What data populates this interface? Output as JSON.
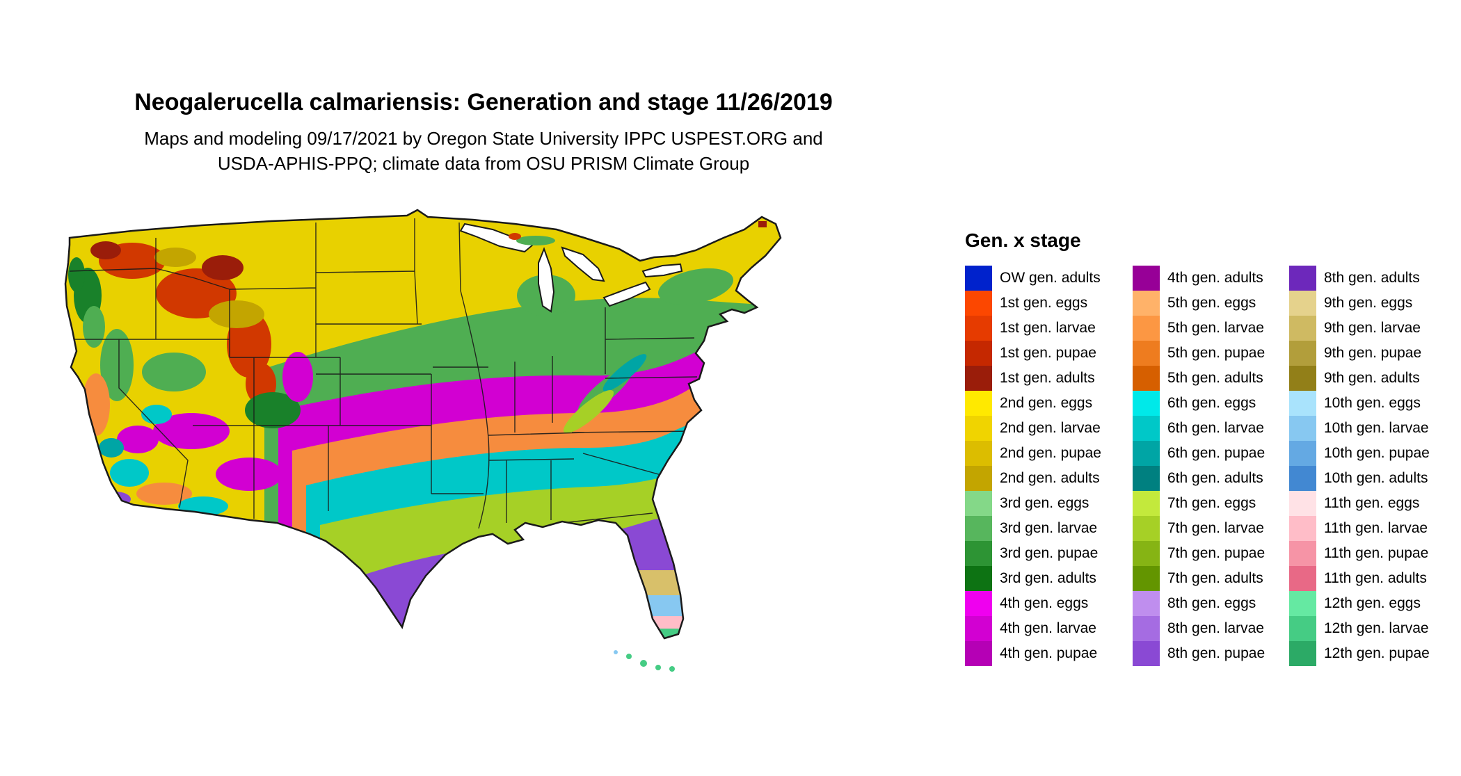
{
  "header": {
    "title": "Neogalerucella calmariensis: Generation and stage 11/26/2019",
    "subtitle_line1": "Maps and modeling 09/17/2021 by Oregon State University IPPC USPEST.ORG and",
    "subtitle_line2": "USDA-APHIS-PPQ; climate data from OSU PRISM Climate Group"
  },
  "legend": {
    "title": "Gen. x stage",
    "columns": [
      [
        {
          "label": "OW gen. adults",
          "color": "#0022cc"
        },
        {
          "label": "1st gen. eggs",
          "color": "#fc4700"
        },
        {
          "label": "1st gen. larvae",
          "color": "#e63b00"
        },
        {
          "label": "1st gen. pupae",
          "color": "#c52800"
        },
        {
          "label": "1st gen. adults",
          "color": "#9a1d0a"
        },
        {
          "label": "2nd gen. eggs",
          "color": "#ffe900"
        },
        {
          "label": "2nd gen. larvae",
          "color": "#f0d400"
        },
        {
          "label": "2nd gen. pupae",
          "color": "#dcbd00"
        },
        {
          "label": "2nd gen. adults",
          "color": "#c3a500"
        },
        {
          "label": "3rd gen. eggs",
          "color": "#84d888"
        },
        {
          "label": "3rd gen. larvae",
          "color": "#57b65d"
        },
        {
          "label": "3rd gen. pupae",
          "color": "#2d9434"
        },
        {
          "label": "3rd gen. adults",
          "color": "#0d7313"
        },
        {
          "label": "4th gen. eggs",
          "color": "#ef00ef"
        },
        {
          "label": "4th gen. larvae",
          "color": "#d200d2"
        },
        {
          "label": "4th gen. pupae",
          "color": "#b500b5"
        }
      ],
      [
        {
          "label": "4th gen. adults",
          "color": "#970097"
        },
        {
          "label": "5th gen. eggs",
          "color": "#ffb269"
        },
        {
          "label": "5th gen. larvae",
          "color": "#fc9743"
        },
        {
          "label": "5th gen. pupae",
          "color": "#ee7c1f"
        },
        {
          "label": "5th gen. adults",
          "color": "#d65f00"
        },
        {
          "label": "6th gen. eggs",
          "color": "#00e9e9"
        },
        {
          "label": "6th gen. larvae",
          "color": "#00c8c8"
        },
        {
          "label": "6th gen. pupae",
          "color": "#00a5a5"
        },
        {
          "label": "6th gen. adults",
          "color": "#008080"
        },
        {
          "label": "7th gen. eggs",
          "color": "#c3e93c"
        },
        {
          "label": "7th gen. larvae",
          "color": "#a6d026"
        },
        {
          "label": "7th gen. pupae",
          "color": "#86b414"
        },
        {
          "label": "7th gen. adults",
          "color": "#639500"
        },
        {
          "label": "8th gen. eggs",
          "color": "#bf8eee"
        },
        {
          "label": "8th gen. larvae",
          "color": "#a56ce2"
        },
        {
          "label": "8th gen. pupae",
          "color": "#8a49d4"
        }
      ],
      [
        {
          "label": "8th gen. adults",
          "color": "#6d28bb"
        },
        {
          "label": "9th gen. eggs",
          "color": "#e5d28c"
        },
        {
          "label": "9th gen. larvae",
          "color": "#cfba62"
        },
        {
          "label": "9th gen. pupae",
          "color": "#b29e3b"
        },
        {
          "label": "9th gen. adults",
          "color": "#927f18"
        },
        {
          "label": "10th gen. eggs",
          "color": "#a9e3fc"
        },
        {
          "label": "10th gen. larvae",
          "color": "#87c8f1"
        },
        {
          "label": "10th gen. pupae",
          "color": "#64a9e3"
        },
        {
          "label": "10th gen. adults",
          "color": "#4288d2"
        },
        {
          "label": "11th gen. eggs",
          "color": "#ffe2e6"
        },
        {
          "label": "11th gen. larvae",
          "color": "#ffbdc8"
        },
        {
          "label": "11th gen. pupae",
          "color": "#f694a6"
        },
        {
          "label": "11th gen. adults",
          "color": "#e86986"
        },
        {
          "label": "12th gen. eggs",
          "color": "#65e9a2"
        },
        {
          "label": "12th gen. larvae",
          "color": "#45cc84"
        },
        {
          "label": "12th gen. pupae",
          "color": "#2caa66"
        }
      ]
    ]
  },
  "map": {
    "ocean": "#ffffff",
    "outline": "#1a1a1a",
    "palette": {
      "yellow": "#e8d100",
      "gold": "#c3a500",
      "red": "#d13800",
      "darkred": "#9a1d0a",
      "green_light": "#84d888",
      "green": "#4fae52",
      "green_dark": "#19812a",
      "magenta": "#d200d2",
      "orange": "#f68c3e",
      "cyan": "#00c8c8",
      "teal": "#00a5a5",
      "yellowgreen": "#a6d026",
      "purple": "#8a49d4",
      "tan": "#d8c06a",
      "skyblue": "#87c8f1",
      "pink": "#ffbdc8",
      "mint": "#45cc84",
      "white": "#ffffff"
    }
  }
}
